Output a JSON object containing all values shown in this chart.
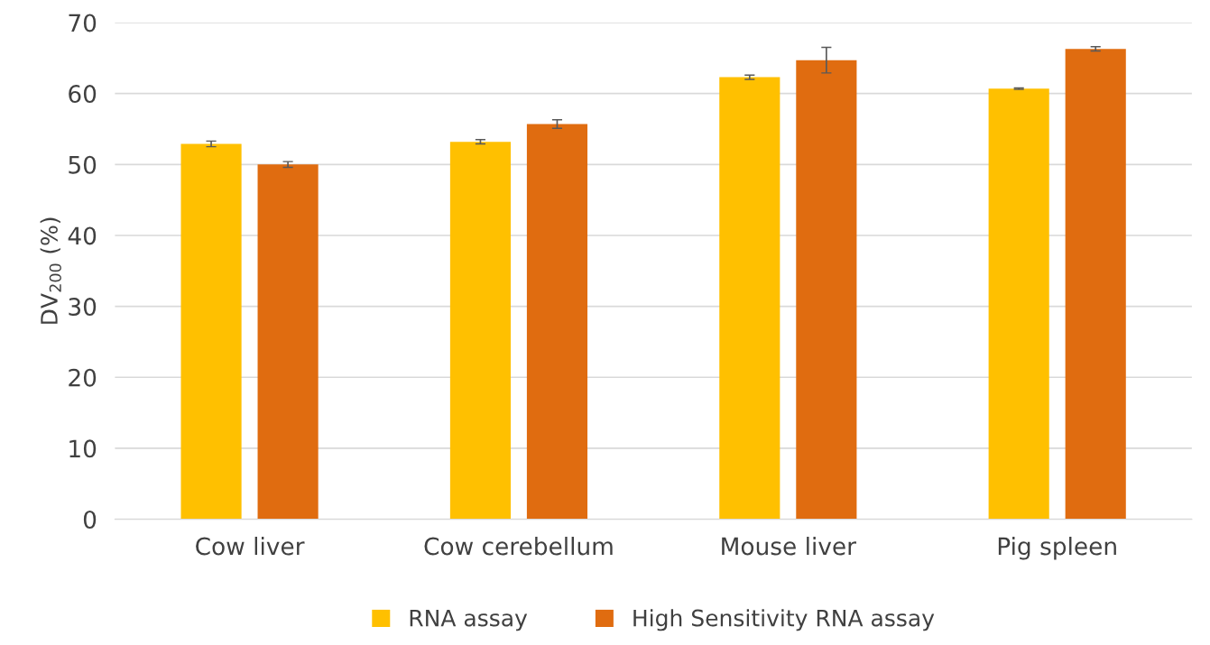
{
  "chart_data": {
    "type": "bar",
    "ylabel": "DV$_{200}$ (%)",
    "categories": [
      "Cow liver",
      "Cow cerebellum",
      "Mouse liver",
      "Pig spleen"
    ],
    "series": [
      {
        "name": "RNA assay",
        "color": "#ffc000",
        "values": [
          52.9,
          53.2,
          62.3,
          60.7
        ],
        "errors": [
          0.4,
          0.3,
          0.3,
          0.1
        ]
      },
      {
        "name": "High Sensitivity RNA assay",
        "color": "#e06c10",
        "values": [
          50.0,
          55.7,
          64.7,
          66.3
        ],
        "errors": [
          0.4,
          0.6,
          1.8,
          0.3
        ]
      }
    ],
    "ylim": [
      0,
      70
    ],
    "yticks": [
      0,
      10,
      20,
      30,
      40,
      50,
      60,
      70
    ],
    "grid": "y",
    "legend": "bottom"
  }
}
